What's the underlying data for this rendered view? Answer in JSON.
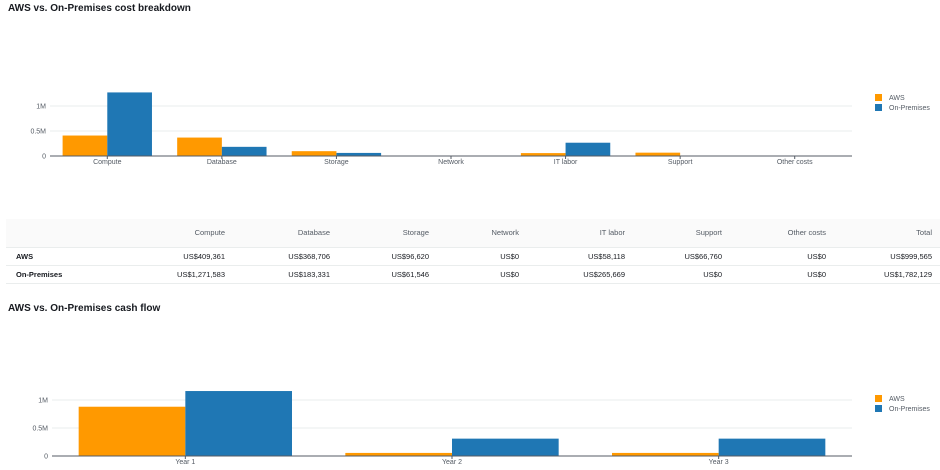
{
  "section1": {
    "title": "AWS vs. On-Premises cost breakdown"
  },
  "section2": {
    "title": "AWS vs. On-Premises cash flow"
  },
  "colors": {
    "aws": "#ff9900",
    "onprem": "#1f77b4"
  },
  "chart_data": [
    {
      "type": "bar",
      "title": "AWS vs. On-Premises cost breakdown",
      "categories": [
        "Compute",
        "Database",
        "Storage",
        "Network",
        "IT labor",
        "Support",
        "Other costs"
      ],
      "series": [
        {
          "name": "AWS",
          "color": "#ff9900",
          "values": [
            409361,
            368706,
            96620,
            0,
            58118,
            66760,
            0
          ]
        },
        {
          "name": "On-Premises",
          "color": "#1f77b4",
          "values": [
            1271583,
            183331,
            61546,
            0,
            265669,
            0,
            0
          ]
        }
      ],
      "yticks": [
        0,
        500000,
        1000000
      ],
      "ytick_labels": [
        "0",
        "0.5M",
        "1M"
      ],
      "ylim": [
        0,
        1500000
      ],
      "legend": "right"
    },
    {
      "type": "bar",
      "title": "AWS vs. On-Premises cash flow",
      "categories": [
        "Year 1",
        "Year 2",
        "Year 3"
      ],
      "series": [
        {
          "name": "AWS",
          "color": "#ff9900",
          "values": [
            880000,
            55000,
            55000
          ]
        },
        {
          "name": "On-Premises",
          "color": "#1f77b4",
          "values": [
            1160000,
            310000,
            310000
          ]
        }
      ],
      "yticks": [
        0,
        500000,
        1000000
      ],
      "ytick_labels": [
        "0",
        "0.5M",
        "1M"
      ],
      "ylim": [
        0,
        1500000
      ],
      "legend": "right"
    }
  ],
  "table": {
    "columns": [
      "Compute",
      "Database",
      "Storage",
      "Network",
      "IT labor",
      "Support",
      "Other costs",
      "Total"
    ],
    "rows": [
      {
        "label": "AWS",
        "cells": [
          "US$409,361",
          "US$368,706",
          "US$96,620",
          "US$0",
          "US$58,118",
          "US$66,760",
          "US$0",
          "US$999,565"
        ]
      },
      {
        "label": "On-Premises",
        "cells": [
          "US$1,271,583",
          "US$183,331",
          "US$61,546",
          "US$0",
          "US$265,669",
          "US$0",
          "US$0",
          "US$1,782,129"
        ]
      }
    ]
  }
}
